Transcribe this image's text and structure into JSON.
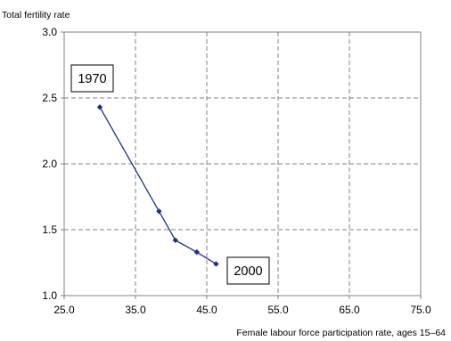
{
  "chart_data": {
    "type": "line",
    "ylabel": "Total fertility rate",
    "xlabel": "Female labour force participation rate, ages 15–64",
    "xlim": [
      25.0,
      75.0
    ],
    "ylim": [
      1.0,
      3.0
    ],
    "x_ticks": [
      "25.0",
      "35.0",
      "45.0",
      "55.0",
      "65.0",
      "75.0"
    ],
    "y_ticks": [
      "1.0",
      "1.5",
      "2.0",
      "2.5",
      "3.0"
    ],
    "grid": true,
    "series": [
      {
        "color": "#1f2f8f",
        "points": [
          {
            "x": 30.0,
            "y": 2.43
          },
          {
            "x": 38.3,
            "y": 1.64
          },
          {
            "x": 40.6,
            "y": 1.42
          },
          {
            "x": 43.6,
            "y": 1.33
          },
          {
            "x": 46.3,
            "y": 1.24
          }
        ]
      }
    ],
    "annotations": [
      {
        "text": "1970",
        "x": 30.0,
        "y": 2.43
      },
      {
        "text": "2000",
        "x": 46.3,
        "y": 1.24
      }
    ]
  }
}
